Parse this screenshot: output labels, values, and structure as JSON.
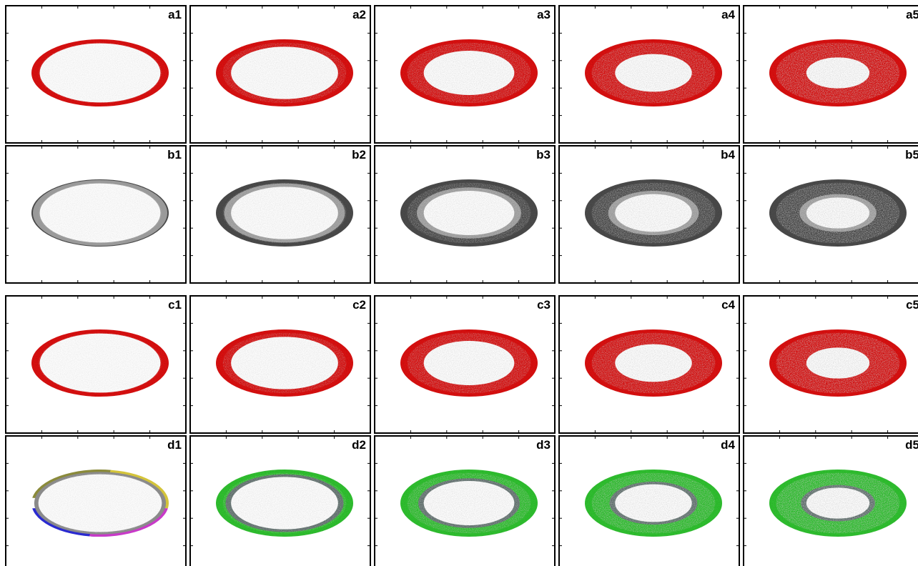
{
  "panels": [
    [
      "a1",
      "a2",
      "a3",
      "a4",
      "a5"
    ],
    [
      "b1",
      "b2",
      "b3",
      "b4",
      "b5"
    ],
    [
      "c1",
      "c2",
      "c3",
      "c4",
      "c5"
    ],
    [
      "d1",
      "d2",
      "d3",
      "d4",
      "d5"
    ]
  ]
}
